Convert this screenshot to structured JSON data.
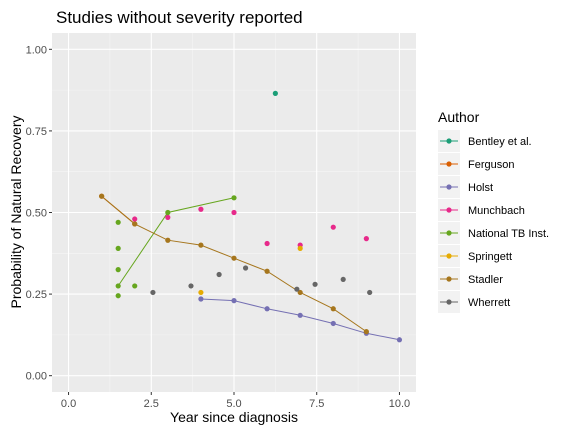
{
  "chart_data": {
    "type": "scatter",
    "title": "Studies without severity reported",
    "xlabel": "Year since diagnosis",
    "ylabel": "Probability of Natural Recovery",
    "xlim": [
      -0.5,
      10.5
    ],
    "ylim": [
      -0.05,
      1.05
    ],
    "x_ticks": [
      0,
      2.5,
      5,
      7.5,
      10
    ],
    "x_tick_labels": [
      "0.0",
      "2.5",
      "5.0",
      "7.5",
      "10.0"
    ],
    "y_ticks": [
      0,
      0.25,
      0.5,
      0.75,
      1
    ],
    "y_tick_labels": [
      "0.00",
      "0.25",
      "0.50",
      "0.75",
      "1.00"
    ],
    "grid": true,
    "legend_title": "Author",
    "legend_position": "right",
    "series": [
      {
        "name": "Bentley et al.",
        "color": "#1b9e77",
        "line": false,
        "points": [
          [
            6.25,
            0.865
          ]
        ]
      },
      {
        "name": "Ferguson",
        "color": "#d95f02",
        "line": true,
        "points": [
          [
            1,
            0.55
          ],
          [
            2,
            0.465
          ]
        ]
      },
      {
        "name": "Holst",
        "color": "#7570b3",
        "line": true,
        "points": [
          [
            4,
            0.235
          ],
          [
            5,
            0.23
          ],
          [
            6,
            0.205
          ],
          [
            7,
            0.185
          ],
          [
            8,
            0.16
          ],
          [
            9,
            0.13
          ],
          [
            10,
            0.11
          ]
        ]
      },
      {
        "name": "Munchbach",
        "color": "#e7298a",
        "line": false,
        "points": [
          [
            2,
            0.48
          ],
          [
            3,
            0.485
          ],
          [
            4,
            0.51
          ],
          [
            5,
            0.5
          ],
          [
            6,
            0.405
          ],
          [
            7,
            0.4
          ],
          [
            8,
            0.455
          ],
          [
            9,
            0.42
          ]
        ]
      },
      {
        "name": "National TB Inst.",
        "color": "#66a61e",
        "line": true,
        "line_points": [
          [
            1.5,
            0.275
          ],
          [
            3,
            0.5
          ],
          [
            5,
            0.545
          ]
        ],
        "points": [
          [
            1.5,
            0.275
          ],
          [
            3,
            0.5
          ],
          [
            5,
            0.545
          ],
          [
            1.5,
            0.47
          ],
          [
            1.5,
            0.39
          ],
          [
            1.5,
            0.325
          ],
          [
            1.5,
            0.245
          ],
          [
            2,
            0.275
          ]
        ]
      },
      {
        "name": "Springett",
        "color": "#e6ab02",
        "line": false,
        "points": [
          [
            4,
            0.255
          ],
          [
            7,
            0.39
          ]
        ]
      },
      {
        "name": "Stadler",
        "color": "#a6761d",
        "line": true,
        "points": [
          [
            1,
            0.55
          ],
          [
            2,
            0.465
          ],
          [
            3,
            0.415
          ],
          [
            4,
            0.4
          ],
          [
            5,
            0.36
          ],
          [
            6,
            0.32
          ],
          [
            7,
            0.255
          ],
          [
            8,
            0.205
          ],
          [
            9,
            0.135
          ]
        ]
      },
      {
        "name": "Wherrett",
        "color": "#666666",
        "line": false,
        "points": [
          [
            2.55,
            0.255
          ],
          [
            3.7,
            0.275
          ],
          [
            4.55,
            0.31
          ],
          [
            5.35,
            0.33
          ],
          [
            6.9,
            0.265
          ],
          [
            7.45,
            0.28
          ],
          [
            8.3,
            0.295
          ],
          [
            9.1,
            0.255
          ]
        ]
      }
    ]
  }
}
